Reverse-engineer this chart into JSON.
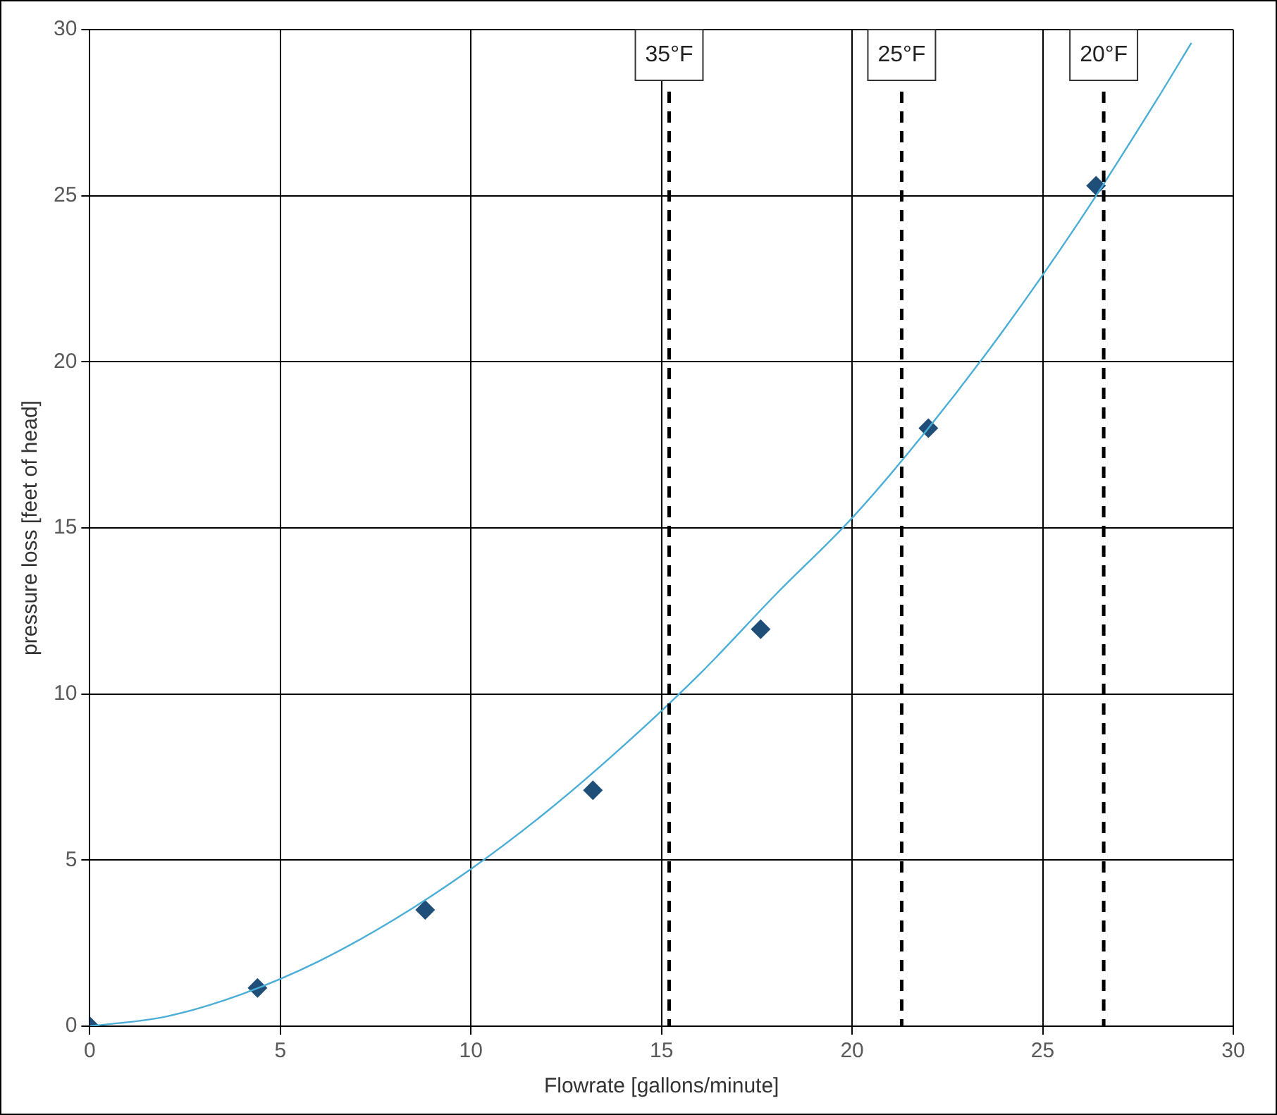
{
  "chart_data": {
    "type": "scatter",
    "xlabel": "Flowrate [gallons/minute]",
    "ylabel": "pressure loss [feet of head]",
    "xlim": [
      0,
      30
    ],
    "ylim": [
      0,
      30
    ],
    "xticks": [
      0,
      5,
      10,
      15,
      20,
      25,
      30
    ],
    "yticks": [
      0,
      5,
      10,
      15,
      20,
      25,
      30
    ],
    "grid": true,
    "legend": false,
    "series": [
      {
        "type": "line",
        "color": "#4aaed6",
        "marker": "none",
        "line_style": "solid",
        "x": [
          0,
          2,
          4,
          6,
          8,
          10,
          12,
          14,
          16,
          18,
          20,
          22,
          24,
          26,
          28,
          28.9
        ],
        "values": [
          0,
          0.29,
          0.97,
          1.95,
          3.22,
          4.73,
          6.47,
          8.44,
          10.6,
          13.0,
          15.3,
          18.0,
          21.0,
          24.3,
          27.9,
          29.6
        ]
      },
      {
        "color": "#1f4e79",
        "marker": "diamond",
        "x": [
          0,
          4.4,
          8.8,
          13.2,
          17.6,
          22,
          26.4
        ],
        "values": [
          0,
          1.15,
          3.5,
          7.1,
          11.95,
          18,
          25.3
        ]
      }
    ],
    "ref_lines": [
      {
        "axis": "x",
        "value": 15.2,
        "label": "35°F",
        "color": "#000000",
        "line_style": "dashed"
      },
      {
        "axis": "x",
        "value": 21.3,
        "label": "25°F",
        "color": "#000000",
        "line_style": "dashed"
      },
      {
        "axis": "x",
        "value": 26.6,
        "label": "20°F",
        "color": "#000000",
        "line_style": "dashed"
      }
    ]
  }
}
